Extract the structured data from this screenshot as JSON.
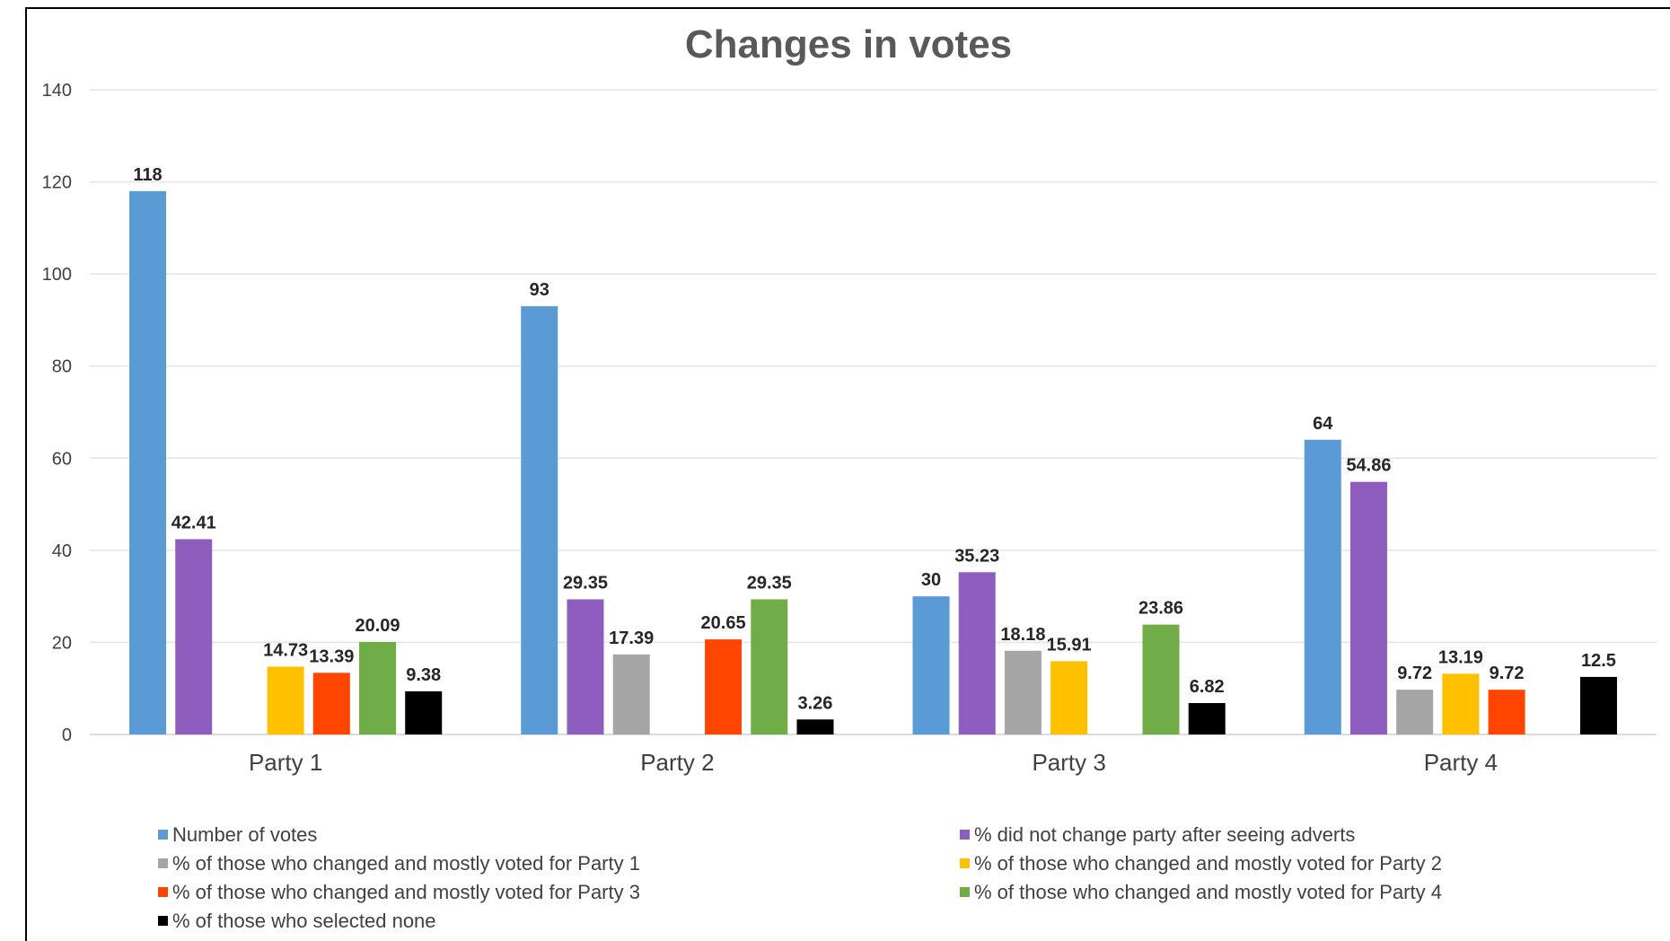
{
  "chart_data": {
    "type": "bar",
    "title": "Changes in votes",
    "xlabel": "",
    "ylabel": "",
    "ylim": [
      0,
      140
    ],
    "yticks": [
      0,
      20,
      40,
      60,
      80,
      100,
      120,
      140
    ],
    "grid": true,
    "legend_position": "bottom",
    "categories": [
      "Party 1",
      "Party 2",
      "Party 3",
      "Party 4"
    ],
    "series": [
      {
        "name": "Number of votes",
        "color": "#5B9BD5",
        "values": [
          118,
          93,
          30,
          64
        ],
        "labels": [
          "118",
          "93",
          "30",
          "64"
        ]
      },
      {
        "name": "% did not change party after seeing adverts",
        "color": "#8E5DBD",
        "values": [
          42.41,
          29.35,
          35.23,
          54.86
        ],
        "labels": [
          "42.41",
          "29.35",
          "35.23",
          "54.86"
        ]
      },
      {
        "name": "% of those who changed and mostly voted for Party 1",
        "color": "#A5A5A5",
        "values": [
          null,
          17.39,
          18.18,
          9.72
        ],
        "labels": [
          "",
          "17.39",
          "18.18",
          "9.72"
        ]
      },
      {
        "name": "% of those who changed and mostly voted for Party 2",
        "color": "#FFC000",
        "values": [
          14.73,
          null,
          15.91,
          13.19
        ],
        "labels": [
          "14.73",
          "",
          "15.91",
          "13.19"
        ]
      },
      {
        "name": "% of those who changed and mostly voted for Party 3",
        "color": "#FF4500",
        "values": [
          13.39,
          20.65,
          null,
          9.72
        ],
        "labels": [
          "13.39",
          "20.65",
          "",
          "9.72"
        ]
      },
      {
        "name": "% of those who changed and mostly voted for Party 4",
        "color": "#70AD47",
        "values": [
          20.09,
          29.35,
          23.86,
          null
        ],
        "labels": [
          "20.09",
          "29.35",
          "23.86",
          ""
        ]
      },
      {
        "name": "% of those who selected none",
        "color": "#000000",
        "values": [
          9.38,
          3.26,
          6.82,
          12.5
        ],
        "labels": [
          "9.38",
          "3.26",
          "6.82",
          "12.5"
        ]
      }
    ]
  }
}
